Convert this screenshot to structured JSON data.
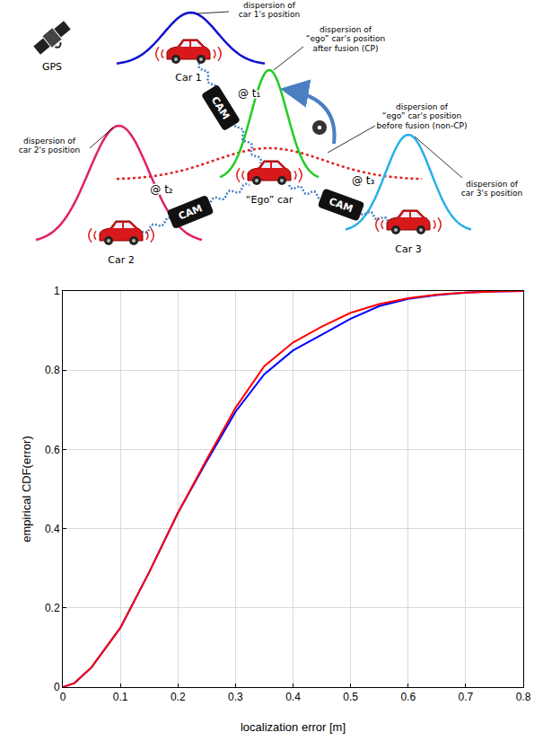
{
  "diagram": {
    "gps": "GPS",
    "cars": {
      "car1": "Car 1",
      "car2": "Car 2",
      "car3": "Car 3",
      "ego": "“Ego” car"
    },
    "messages": [
      {
        "label": "CAM",
        "time": "@ t₁"
      },
      {
        "label": "CAM",
        "time": "@ t₂"
      },
      {
        "label": "CAM",
        "time": "@ t₃"
      }
    ],
    "dispersions": {
      "car1": [
        "dispersion of",
        "car 1's position"
      ],
      "ego_after": [
        "dispersion of",
        "“ego” car's position",
        "after fusion (CP)"
      ],
      "ego_before": [
        "dispersion of",
        "“ego” car's position",
        "before fusion (non-CP)"
      ],
      "car2": [
        "dispersion of",
        "car 2's position"
      ],
      "car3": [
        "dispersion of",
        "car 3's position"
      ]
    }
  },
  "chart_data": {
    "type": "line",
    "x_label": "localization error [m]",
    "y_label": "empirical CDF(error)",
    "x": [
      0,
      0.02,
      0.05,
      0.1,
      0.15,
      0.2,
      0.25,
      0.3,
      0.35,
      0.4,
      0.45,
      0.5,
      0.55,
      0.6,
      0.65,
      0.7,
      0.75,
      0.8
    ],
    "series": [
      {
        "color": "#0000ff",
        "values": [
          0,
          0.01,
          0.05,
          0.15,
          0.29,
          0.44,
          0.57,
          0.695,
          0.79,
          0.85,
          0.89,
          0.93,
          0.962,
          0.98,
          0.99,
          0.996,
          0.999,
          1.0
        ]
      },
      {
        "color": "#ff0000",
        "values": [
          0,
          0.01,
          0.05,
          0.15,
          0.29,
          0.44,
          0.575,
          0.705,
          0.81,
          0.87,
          0.91,
          0.945,
          0.967,
          0.982,
          0.991,
          0.996,
          0.999,
          1.0
        ]
      }
    ],
    "xlim": [
      0,
      0.8
    ],
    "xticks": [
      0,
      0.1,
      0.2,
      0.3,
      0.4,
      0.5,
      0.6,
      0.7,
      0.8
    ],
    "ylim": [
      0,
      1
    ],
    "yticks": [
      0,
      0.2,
      0.4,
      0.6,
      0.8,
      1
    ],
    "grid": true,
    "line_style": "solid"
  }
}
